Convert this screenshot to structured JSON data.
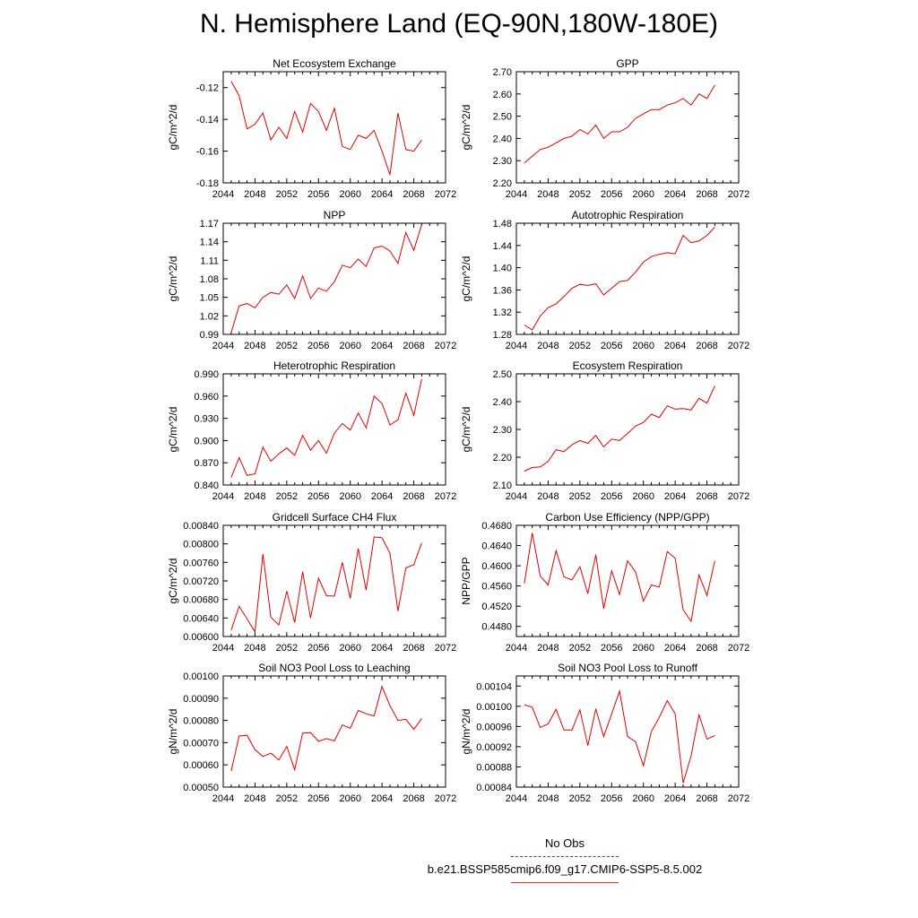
{
  "page_title": "N. Hemisphere Land (EQ-90N,180W-180E)",
  "legend": [
    {
      "label": "No Obs",
      "color": "#3b3bd6",
      "style": "dashed"
    },
    {
      "label": "b.e21.BSSP585cmip6.f09_g17.CMIP6-SSP5-8.5.002",
      "color": "#e03030",
      "style": "solid"
    }
  ],
  "chart_data": [
    {
      "type": "line",
      "title": "Net Ecosystem Exchange",
      "ylabel": "gC/m^2/d",
      "xlim": [
        2044,
        2072
      ],
      "xticks": [
        "2044",
        "2048",
        "2052",
        "2056",
        "2060",
        "2064",
        "2068",
        "2072"
      ],
      "ylim": [
        -0.18,
        -0.11
      ],
      "yticks": [
        "-0.12",
        "-0.14",
        "-0.16",
        "-0.18"
      ],
      "ytick_values": [
        -0.12,
        -0.14,
        -0.16,
        -0.18
      ],
      "color": "#e00000",
      "x": [
        2045,
        2046,
        2047,
        2048,
        2049,
        2050,
        2051,
        2052,
        2053,
        2054,
        2055,
        2056,
        2057,
        2058,
        2059,
        2060,
        2061,
        2062,
        2063,
        2064,
        2065,
        2066,
        2067,
        2068,
        2069
      ],
      "values": [
        -0.116,
        -0.125,
        -0.146,
        -0.143,
        -0.136,
        -0.153,
        -0.145,
        -0.152,
        -0.135,
        -0.148,
        -0.13,
        -0.135,
        -0.147,
        -0.133,
        -0.157,
        -0.159,
        -0.15,
        -0.152,
        -0.147,
        -0.16,
        -0.175,
        -0.136,
        -0.159,
        -0.16,
        -0.153
      ]
    },
    {
      "type": "line",
      "title": "GPP",
      "ylabel": "gC/m^2/d",
      "xlim": [
        2044,
        2072
      ],
      "xticks": [
        "2044",
        "2048",
        "2052",
        "2056",
        "2060",
        "2064",
        "2068",
        "2072"
      ],
      "ylim": [
        2.2,
        2.7
      ],
      "yticks": [
        "2.70",
        "2.60",
        "2.50",
        "2.40",
        "2.30",
        "2.20"
      ],
      "ytick_values": [
        2.7,
        2.6,
        2.5,
        2.4,
        2.3,
        2.2
      ],
      "color": "#e00000",
      "x": [
        2045,
        2046,
        2047,
        2048,
        2049,
        2050,
        2051,
        2052,
        2053,
        2054,
        2055,
        2056,
        2057,
        2058,
        2059,
        2060,
        2061,
        2062,
        2063,
        2064,
        2065,
        2066,
        2067,
        2068,
        2069
      ],
      "values": [
        2.29,
        2.32,
        2.35,
        2.36,
        2.38,
        2.4,
        2.41,
        2.44,
        2.42,
        2.46,
        2.4,
        2.43,
        2.43,
        2.45,
        2.49,
        2.51,
        2.53,
        2.53,
        2.55,
        2.56,
        2.58,
        2.55,
        2.6,
        2.58,
        2.64
      ]
    },
    {
      "type": "line",
      "title": "NPP",
      "ylabel": "gC/m^2/d",
      "xlim": [
        2044,
        2072
      ],
      "xticks": [
        "2044",
        "2048",
        "2052",
        "2056",
        "2060",
        "2064",
        "2068",
        "2072"
      ],
      "ylim": [
        0.99,
        1.17
      ],
      "yticks": [
        "1.17",
        "1.14",
        "1.11",
        "1.08",
        "1.05",
        "1.02",
        "0.99"
      ],
      "ytick_values": [
        1.17,
        1.14,
        1.11,
        1.08,
        1.05,
        1.02,
        0.99
      ],
      "color": "#e00000",
      "x": [
        2045,
        2046,
        2047,
        2048,
        2049,
        2050,
        2051,
        2052,
        2053,
        2054,
        2055,
        2056,
        2057,
        2058,
        2059,
        2060,
        2061,
        2062,
        2063,
        2064,
        2065,
        2066,
        2067,
        2068,
        2069
      ],
      "values": [
        0.993,
        1.036,
        1.04,
        1.033,
        1.05,
        1.058,
        1.055,
        1.07,
        1.048,
        1.085,
        1.048,
        1.065,
        1.06,
        1.075,
        1.102,
        1.098,
        1.112,
        1.1,
        1.13,
        1.133,
        1.125,
        1.105,
        1.155,
        1.126,
        1.168
      ]
    },
    {
      "type": "line",
      "title": "Autotrophic Respiration",
      "ylabel": "gC/m^2/d",
      "xlim": [
        2044,
        2072
      ],
      "xticks": [
        "2044",
        "2048",
        "2052",
        "2056",
        "2060",
        "2064",
        "2068",
        "2072"
      ],
      "ylim": [
        1.28,
        1.48
      ],
      "yticks": [
        "1.48",
        "1.44",
        "1.40",
        "1.36",
        "1.32",
        "1.28"
      ],
      "ytick_values": [
        1.48,
        1.44,
        1.4,
        1.36,
        1.32,
        1.28
      ],
      "color": "#e00000",
      "x": [
        2045,
        2046,
        2047,
        2048,
        2049,
        2050,
        2051,
        2052,
        2053,
        2054,
        2055,
        2056,
        2057,
        2058,
        2059,
        2060,
        2061,
        2062,
        2063,
        2064,
        2065,
        2066,
        2067,
        2068,
        2069
      ],
      "values": [
        1.297,
        1.288,
        1.313,
        1.328,
        1.335,
        1.348,
        1.363,
        1.37,
        1.368,
        1.371,
        1.351,
        1.363,
        1.375,
        1.377,
        1.392,
        1.41,
        1.42,
        1.424,
        1.427,
        1.425,
        1.458,
        1.445,
        1.448,
        1.458,
        1.473
      ]
    },
    {
      "type": "line",
      "title": "Heterotrophic Respiration",
      "ylabel": "gC/m^2/d",
      "xlim": [
        2044,
        2072
      ],
      "xticks": [
        "2044",
        "2048",
        "2052",
        "2056",
        "2060",
        "2064",
        "2068",
        "2072"
      ],
      "ylim": [
        0.84,
        0.99
      ],
      "yticks": [
        "0.990",
        "0.960",
        "0.930",
        "0.900",
        "0.870",
        "0.840"
      ],
      "ytick_values": [
        0.99,
        0.96,
        0.93,
        0.9,
        0.87,
        0.84
      ],
      "color": "#e00000",
      "x": [
        2045,
        2046,
        2047,
        2048,
        2049,
        2050,
        2051,
        2052,
        2053,
        2054,
        2055,
        2056,
        2057,
        2058,
        2059,
        2060,
        2061,
        2062,
        2063,
        2064,
        2065,
        2066,
        2067,
        2068,
        2069
      ],
      "values": [
        0.85,
        0.877,
        0.853,
        0.855,
        0.891,
        0.872,
        0.882,
        0.89,
        0.88,
        0.907,
        0.887,
        0.9,
        0.883,
        0.91,
        0.923,
        0.914,
        0.937,
        0.917,
        0.96,
        0.95,
        0.921,
        0.928,
        0.964,
        0.934,
        0.983
      ]
    },
    {
      "type": "line",
      "title": "Ecosystem Respiration",
      "ylabel": "gC/m^2/d",
      "xlim": [
        2044,
        2072
      ],
      "xticks": [
        "2044",
        "2048",
        "2052",
        "2056",
        "2060",
        "2064",
        "2068",
        "2072"
      ],
      "ylim": [
        2.1,
        2.5
      ],
      "yticks": [
        "2.50",
        "2.40",
        "2.30",
        "2.20",
        "2.10"
      ],
      "ytick_values": [
        2.5,
        2.4,
        2.3,
        2.2,
        2.1
      ],
      "color": "#e00000",
      "x": [
        2045,
        2046,
        2047,
        2048,
        2049,
        2050,
        2051,
        2052,
        2053,
        2054,
        2055,
        2056,
        2057,
        2058,
        2059,
        2060,
        2061,
        2062,
        2063,
        2064,
        2065,
        2066,
        2067,
        2068,
        2069
      ],
      "values": [
        2.15,
        2.163,
        2.165,
        2.185,
        2.227,
        2.22,
        2.245,
        2.26,
        2.25,
        2.278,
        2.237,
        2.265,
        2.26,
        2.285,
        2.312,
        2.325,
        2.355,
        2.343,
        2.385,
        2.373,
        2.375,
        2.37,
        2.412,
        2.395,
        2.457
      ]
    },
    {
      "type": "line",
      "title": "Gridcell Surface CH4 Flux",
      "ylabel": "gC/m^2/d",
      "xlim": [
        2044,
        2072
      ],
      "xticks": [
        "2044",
        "2048",
        "2052",
        "2056",
        "2060",
        "2064",
        "2068",
        "2072"
      ],
      "ylim": [
        0.006,
        0.0084
      ],
      "yticks": [
        "0.00840",
        "0.00800",
        "0.00760",
        "0.00720",
        "0.00680",
        "0.00640",
        "0.00600"
      ],
      "ytick_values": [
        0.0084,
        0.008,
        0.0076,
        0.0072,
        0.0068,
        0.0064,
        0.006
      ],
      "color": "#e00000",
      "x": [
        2045,
        2046,
        2047,
        2048,
        2049,
        2050,
        2051,
        2052,
        2053,
        2054,
        2055,
        2056,
        2057,
        2058,
        2059,
        2060,
        2061,
        2062,
        2063,
        2064,
        2065,
        2066,
        2067,
        2068,
        2069
      ],
      "values": [
        0.00614,
        0.00665,
        0.00638,
        0.0061,
        0.00778,
        0.00642,
        0.00625,
        0.00698,
        0.0063,
        0.0074,
        0.0064,
        0.00726,
        0.00688,
        0.00687,
        0.0076,
        0.00682,
        0.0079,
        0.007,
        0.00815,
        0.00813,
        0.0078,
        0.00655,
        0.00748,
        0.00755,
        0.00802
      ]
    },
    {
      "type": "line",
      "title": "Carbon Use Efficiency (NPP/GPP)",
      "ylabel": "NPP/GPP",
      "xlim": [
        2044,
        2072
      ],
      "xticks": [
        "2044",
        "2048",
        "2052",
        "2056",
        "2060",
        "2064",
        "2068",
        "2072"
      ],
      "ylim": [
        0.446,
        0.468
      ],
      "yticks": [
        "0.4680",
        "0.4640",
        "0.4600",
        "0.4560",
        "0.4520",
        "0.4480"
      ],
      "ytick_values": [
        0.468,
        0.464,
        0.46,
        0.456,
        0.452,
        0.448
      ],
      "color": "#e00000",
      "x": [
        2045,
        2046,
        2047,
        2048,
        2049,
        2050,
        2051,
        2052,
        2053,
        2054,
        2055,
        2056,
        2057,
        2058,
        2059,
        2060,
        2061,
        2062,
        2063,
        2064,
        2065,
        2066,
        2067,
        2068,
        2069
      ],
      "values": [
        0.4565,
        0.4665,
        0.458,
        0.4562,
        0.463,
        0.4578,
        0.4572,
        0.4598,
        0.4545,
        0.4622,
        0.4515,
        0.459,
        0.4543,
        0.461,
        0.4588,
        0.453,
        0.4562,
        0.4558,
        0.4628,
        0.4615,
        0.4513,
        0.449,
        0.4582,
        0.4541,
        0.461
      ]
    },
    {
      "type": "line",
      "title": "Soil NO3 Pool Loss to Leaching",
      "ylabel": "gN/m^2/d",
      "xlim": [
        2044,
        2072
      ],
      "xticks": [
        "2044",
        "2048",
        "2052",
        "2056",
        "2060",
        "2064",
        "2068",
        "2072"
      ],
      "ylim": [
        0.0005,
        0.001
      ],
      "yticks": [
        "0.00100",
        "0.00090",
        "0.00080",
        "0.00070",
        "0.00060",
        "0.00050"
      ],
      "ytick_values": [
        0.001,
        0.0009,
        0.0008,
        0.0007,
        0.0006,
        0.0005
      ],
      "color": "#e00000",
      "x": [
        2045,
        2046,
        2047,
        2048,
        2049,
        2050,
        2051,
        2052,
        2053,
        2054,
        2055,
        2056,
        2057,
        2058,
        2059,
        2060,
        2061,
        2062,
        2063,
        2064,
        2065,
        2066,
        2067,
        2068,
        2069
      ],
      "values": [
        0.000572,
        0.00073,
        0.000733,
        0.000668,
        0.000638,
        0.000653,
        0.000622,
        0.000683,
        0.000578,
        0.000743,
        0.000745,
        0.000706,
        0.000718,
        0.000708,
        0.00078,
        0.000765,
        0.000845,
        0.00083,
        0.00082,
        0.000953,
        0.000866,
        0.0008,
        0.000805,
        0.00076,
        0.000808
      ]
    },
    {
      "type": "line",
      "title": "Soil NO3 Pool Loss to Runoff",
      "ylabel": "gN/m^2/d",
      "xlim": [
        2044,
        2072
      ],
      "xticks": [
        "2044",
        "2048",
        "2052",
        "2056",
        "2060",
        "2064",
        "2068",
        "2072"
      ],
      "ylim": [
        0.00084,
        0.00106
      ],
      "yticks": [
        "0.00104",
        "0.00100",
        "0.00096",
        "0.00092",
        "0.00088",
        "0.00084"
      ],
      "ytick_values": [
        0.00104,
        0.001,
        0.00096,
        0.00092,
        0.00088,
        0.00084
      ],
      "color": "#e00000",
      "x": [
        2045,
        2046,
        2047,
        2048,
        2049,
        2050,
        2051,
        2052,
        2053,
        2054,
        2055,
        2056,
        2057,
        2058,
        2059,
        2060,
        2061,
        2062,
        2063,
        2064,
        2065,
        2066,
        2067,
        2068,
        2069
      ],
      "values": [
        0.001003,
        0.000998,
        0.000958,
        0.000965,
        0.000994,
        0.000953,
        0.000953,
        0.000993,
        0.000922,
        0.000995,
        0.00094,
        0.000985,
        0.00103,
        0.00094,
        0.00093,
        0.000882,
        0.00095,
        0.000978,
        0.001011,
        0.000985,
        0.000848,
        0.000902,
        0.000983,
        0.000935,
        0.000942
      ]
    }
  ]
}
